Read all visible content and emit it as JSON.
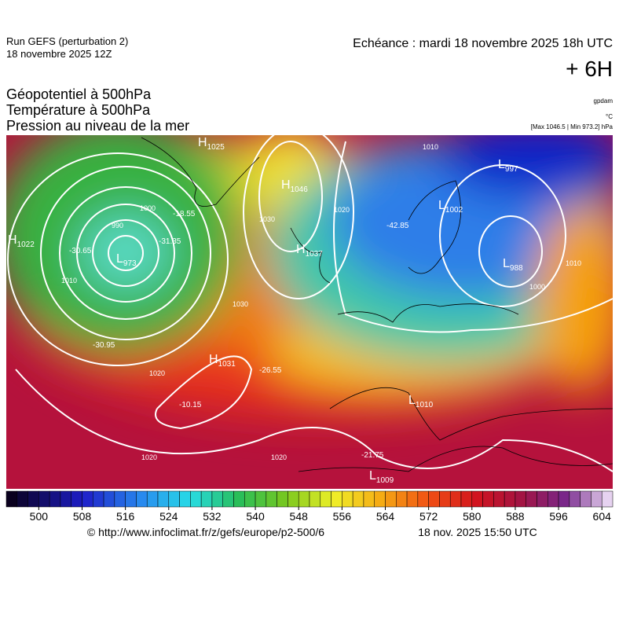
{
  "header": {
    "run": "Run GEFS (perturbation 2)",
    "run_date": "18 novembre 2025 12Z",
    "valid": "Echéance : mardi 18 novembre 2025 18h UTC",
    "lead": "+ 6H"
  },
  "titles": [
    "Géopotentiel à 500hPa",
    "Température à 500hPa",
    "Pression au niveau de la mer"
  ],
  "units": {
    "geopotential": "gpdam",
    "temperature": "°C",
    "pressure": "[Max 1046.5 | Min 973.2] hPa"
  },
  "centers": [
    {
      "letter": "H",
      "value": 1022
    },
    {
      "letter": "H",
      "value": 1025
    },
    {
      "letter": "H",
      "value": 1046
    },
    {
      "letter": "H",
      "value": 1037
    },
    {
      "letter": "L",
      "value": 997
    },
    {
      "letter": "L",
      "value": 1002
    },
    {
      "letter": "L",
      "value": 988
    },
    {
      "letter": "H",
      "value": 1031
    },
    {
      "letter": "L",
      "value": 1010
    },
    {
      "letter": "L",
      "value": 1009
    },
    {
      "letter": "L",
      "value": 973
    }
  ],
  "temperatures": [
    -30.65,
    -31.35,
    -18.55,
    -42.85,
    -30.95,
    -10.15,
    -26.55,
    -21.75
  ],
  "isobars": [
    990,
    1000,
    1010,
    1020,
    1030,
    1020,
    1030,
    1010,
    1000,
    1010,
    1020,
    1020
  ],
  "colorbar": {
    "lim": [
      494,
      606
    ],
    "ticks": [
      500,
      508,
      516,
      524,
      532,
      540,
      548,
      556,
      564,
      572,
      580,
      588,
      596,
      604
    ]
  },
  "footer": {
    "source": "© http://www.infoclimat.fr/z/gefs/europe/p2-500/6",
    "generated": "18 nov. 2025 15:50 UTC"
  }
}
